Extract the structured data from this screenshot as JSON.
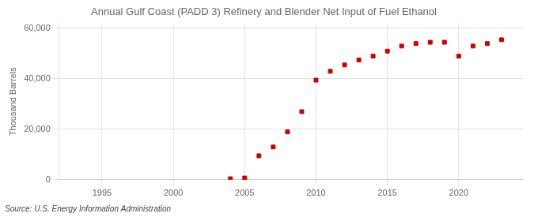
{
  "chart_data": {
    "type": "scatter",
    "title": "Annual Gulf Coast (PADD 3) Refinery and Blender Net Input of Fuel Ethanol",
    "ylabel": "Thousand Barrels",
    "annotations": [
      "Source: U.S. Energy Information Administration"
    ],
    "x": [
      2004,
      2005,
      2006,
      2007,
      2008,
      2009,
      2010,
      2011,
      2012,
      2013,
      2014,
      2015,
      2016,
      2017,
      2018,
      2019,
      2020,
      2021,
      2022,
      2023
    ],
    "values": [
      400,
      700,
      9500,
      13000,
      19000,
      27000,
      39500,
      43000,
      45500,
      47500,
      49000,
      51000,
      53000,
      54000,
      54500,
      54500,
      49000,
      53000,
      54000,
      55500
    ],
    "color": "#cc0000",
    "marker": "square",
    "xlim": [
      1992,
      2024.5
    ],
    "ylim": [
      0,
      62000
    ],
    "xticks": [
      1995,
      2000,
      2005,
      2010,
      2015,
      2020
    ],
    "yticks": [
      0,
      {
        "value": 20000,
        "label": "20,000"
      },
      {
        "value": 40000,
        "label": "40,000"
      },
      {
        "value": 60000,
        "label": "60,000"
      }
    ],
    "grid": true
  }
}
